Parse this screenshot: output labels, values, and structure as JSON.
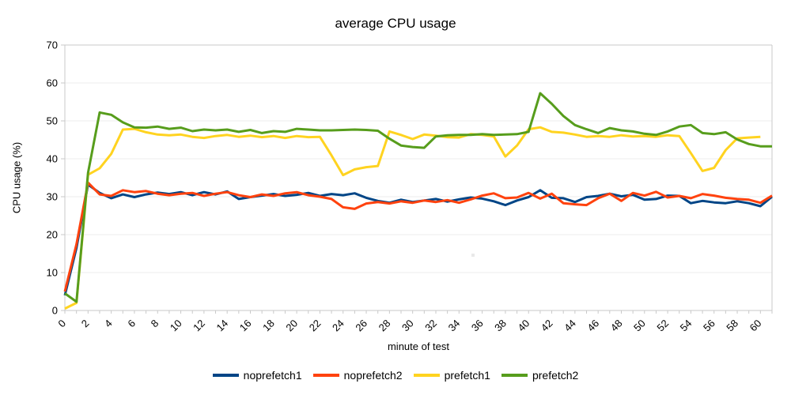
{
  "chart_data": {
    "type": "line",
    "title": "average CPU usage",
    "xlabel": "minute of test",
    "ylabel": "CPU usage (%)",
    "ylim": [
      0,
      70
    ],
    "y_tick_step": 10,
    "xlim": [
      0,
      61
    ],
    "x_label_max": 60,
    "x_label_step": 2,
    "x_minor_tick_step": 1,
    "x_start": 0,
    "x_step": 1,
    "grid": "horizontal",
    "legend_position": "bottom",
    "series": [
      {
        "name": "noprefetch1",
        "color": "#004586",
        "values": [
          4.0,
          16.5,
          33.2,
          31.0,
          29.6,
          30.6,
          29.9,
          30.6,
          31.1,
          30.7,
          31.2,
          30.4,
          31.2,
          30.6,
          31.4,
          29.4,
          29.9,
          30.3,
          30.7,
          30.2,
          30.5,
          31.0,
          30.2,
          30.7,
          30.4,
          30.9,
          29.7,
          28.9,
          28.4,
          29.2,
          28.6,
          29.0,
          29.4,
          28.7,
          29.3,
          29.8,
          29.5,
          28.8,
          27.8,
          29.0,
          29.9,
          31.7,
          29.7,
          29.6,
          28.6,
          29.9,
          30.2,
          30.8,
          30.1,
          30.5,
          29.2,
          29.4,
          30.3,
          30.2,
          28.3,
          28.9,
          28.5,
          28.3,
          28.8,
          28.3,
          27.5,
          30.0
        ]
      },
      {
        "name": "noprefetch2",
        "color": "#ff420e",
        "values": [
          5.0,
          17.5,
          33.7,
          30.6,
          30.2,
          31.7,
          31.2,
          31.5,
          30.8,
          30.4,
          30.8,
          31.0,
          30.2,
          30.8,
          31.2,
          30.4,
          29.9,
          30.6,
          30.2,
          30.9,
          31.2,
          30.4,
          30.0,
          29.4,
          27.2,
          26.8,
          28.2,
          28.6,
          28.2,
          28.8,
          28.4,
          29.0,
          28.6,
          29.1,
          28.4,
          29.3,
          30.3,
          30.9,
          29.6,
          29.8,
          31.0,
          29.5,
          30.8,
          28.3,
          28.0,
          27.8,
          29.6,
          30.8,
          28.9,
          31.0,
          30.3,
          31.3,
          29.8,
          30.2,
          29.6,
          30.7,
          30.3,
          29.7,
          29.4,
          29.2,
          28.4,
          30.3
        ]
      },
      {
        "name": "prefetch1",
        "color": "#ffd320",
        "values": [
          0.5,
          2.0,
          35.8,
          37.5,
          41.3,
          47.7,
          47.9,
          47.0,
          46.4,
          46.2,
          46.4,
          45.8,
          45.5,
          46.0,
          46.3,
          45.8,
          46.1,
          45.7,
          46.0,
          45.5,
          46.0,
          45.7,
          45.8,
          40.9,
          35.7,
          37.2,
          37.8,
          38.1,
          47.2,
          46.3,
          45.2,
          46.4,
          46.1,
          45.7,
          45.6,
          46.5,
          46.3,
          45.9,
          40.6,
          43.5,
          47.8,
          48.3,
          47.1,
          46.9,
          46.4,
          45.8,
          46.0,
          45.8,
          46.2,
          45.9,
          46.0,
          45.8,
          46.2,
          46.0,
          41.5,
          36.8,
          37.6,
          42.3,
          45.4,
          45.6,
          45.8
        ]
      },
      {
        "name": "prefetch2",
        "color": "#579d1c",
        "values": [
          4.5,
          2.3,
          36.3,
          52.2,
          51.6,
          49.6,
          48.3,
          48.2,
          48.5,
          47.9,
          48.2,
          47.3,
          47.7,
          47.5,
          47.7,
          47.1,
          47.6,
          46.8,
          47.3,
          47.1,
          47.9,
          47.7,
          47.5,
          47.5,
          47.6,
          47.7,
          47.6,
          47.4,
          45.3,
          43.5,
          43.1,
          42.9,
          45.9,
          46.2,
          46.3,
          46.3,
          46.5,
          46.3,
          46.4,
          46.5,
          47.1,
          57.3,
          54.5,
          51.3,
          48.9,
          47.8,
          46.8,
          48.1,
          47.5,
          47.2,
          46.6,
          46.3,
          47.2,
          48.5,
          48.9,
          46.8,
          46.5,
          47.0,
          45.1,
          43.9,
          43.3,
          43.3
        ]
      }
    ],
    "style": {
      "axis_color": "#c9c9c9",
      "grid_color": "#eeeeee",
      "text_color": "#000000",
      "background": "#ffffff",
      "line_width": 3
    }
  }
}
